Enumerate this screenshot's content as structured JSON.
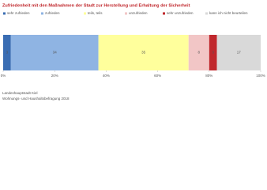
{
  "chart_data": {
    "type": "stacked_bar_h",
    "title": "Zufriedenheit mit den Maßnahmen der Stadt zur Herstellung und Erhaltung der Sicherheit",
    "series": [
      {
        "name": "sehr zufrieden",
        "color": "#3a6db3",
        "values": [
          3
        ]
      },
      {
        "name": "zufrieden",
        "color": "#8fb4e3",
        "values": [
          34
        ]
      },
      {
        "name": "teils, teils",
        "color": "#ffff9c",
        "values": [
          35
        ]
      },
      {
        "name": "unzufrieden",
        "color": "#f2c6c6",
        "values": [
          8
        ]
      },
      {
        "name": "sehr unzufrieden",
        "color": "#c0282d",
        "values": [
          3
        ]
      },
      {
        "name": "kann ich nicht beurteilen",
        "color": "#d9d9d9",
        "values": [
          17
        ]
      }
    ],
    "xlim": [
      0,
      100
    ],
    "xticks": [
      {
        "value": 0,
        "label": "0%"
      },
      {
        "value": 20,
        "label": "20%"
      },
      {
        "value": 40,
        "label": "40%"
      },
      {
        "value": 60,
        "label": "60%"
      },
      {
        "value": 80,
        "label": "80%"
      },
      {
        "value": 100,
        "label": "100%"
      }
    ],
    "source": [
      "Landeshauptstadt Kiel",
      "Wohnungs- und Haushaltsbefragung 2018"
    ]
  }
}
